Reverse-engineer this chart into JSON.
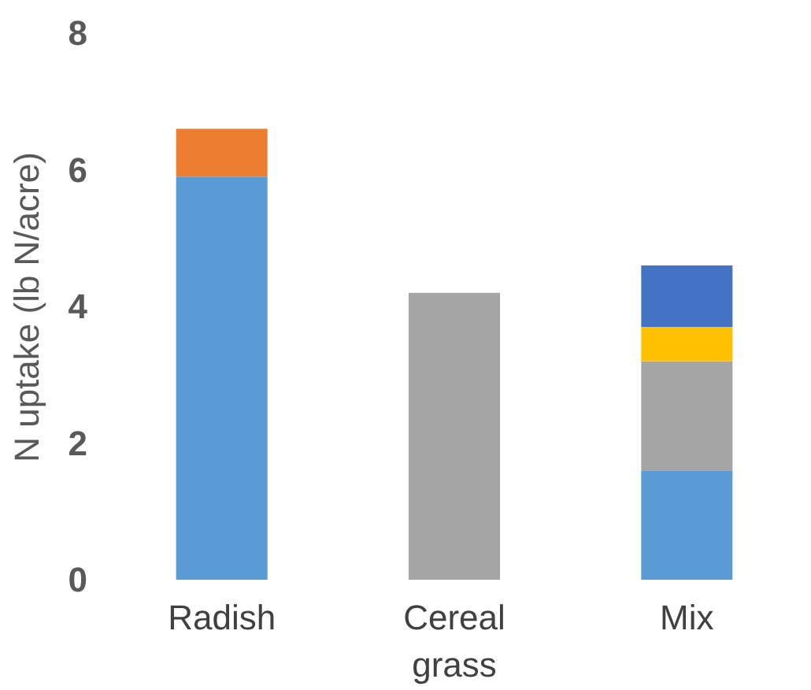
{
  "chart_data": {
    "type": "bar",
    "stacked": true,
    "ylabel": "N uptake (lb N/acre)",
    "categories": [
      "Radish",
      "Cereal grass",
      "Mix"
    ],
    "series": [
      {
        "color": "#5b9bd5",
        "values": [
          5.9,
          null,
          1.6
        ]
      },
      {
        "color": "#a5a5a5",
        "values": [
          null,
          4.2,
          1.6
        ]
      },
      {
        "color": "#ffc000",
        "values": [
          null,
          null,
          0.5
        ]
      },
      {
        "color": "#4472c4",
        "values": [
          null,
          null,
          0.9
        ]
      },
      {
        "color": "#ed7d31",
        "values": [
          0.7,
          null,
          null
        ]
      }
    ],
    "ylim": [
      0,
      8
    ],
    "yticks": [
      0,
      2,
      4,
      6,
      8
    ],
    "grid": false,
    "legend": false
  }
}
